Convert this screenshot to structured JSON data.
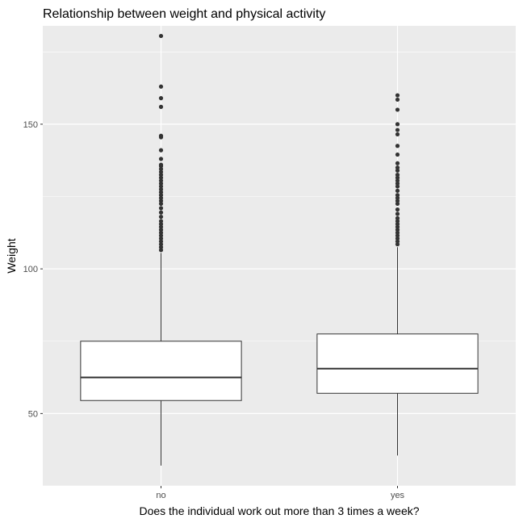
{
  "chart_data": {
    "type": "box",
    "title": "Relationship between weight and physical activity",
    "xlabel": "Does the individual work out more than 3 times a week?",
    "ylabel": "Weight",
    "ylim": [
      25,
      184
    ],
    "yticks": [
      50,
      100,
      150
    ],
    "grid": true,
    "legend": "none",
    "colors": {
      "panel": "#ebebeb",
      "grid": "#ffffff",
      "box_fill": "#ffffff",
      "box_stroke": "#333333",
      "outlier": "#333333",
      "tick_text": "#4d4d4d"
    },
    "categories": [
      "no",
      "yes"
    ],
    "boxes": [
      {
        "category": "no",
        "whisker_low": 32,
        "q1": 54.5,
        "median": 62.5,
        "q3": 75,
        "whisker_high": 105.5,
        "outliers": [
          106.5,
          107.5,
          108.5,
          109.5,
          110.5,
          111.5,
          112.5,
          113.5,
          114.5,
          115.5,
          116.5,
          118,
          119.5,
          121,
          122.5,
          123.5,
          124.5,
          125.5,
          126.5,
          127.5,
          128.5,
          129.5,
          130.5,
          131.5,
          132.5,
          133.5,
          134.5,
          135.5,
          136,
          138,
          141,
          145.5,
          146,
          156,
          159,
          163,
          180.5
        ]
      },
      {
        "category": "yes",
        "whisker_low": 35.5,
        "q1": 57,
        "median": 65.5,
        "q3": 77.5,
        "whisker_high": 107.5,
        "outliers": [
          108.5,
          109.5,
          110.5,
          111.5,
          112.5,
          113.5,
          114.5,
          115.5,
          116.5,
          117.5,
          119,
          120.5,
          122.5,
          123.5,
          124.5,
          125.5,
          127,
          128.5,
          129.5,
          130.5,
          131.5,
          132.5,
          134,
          135,
          136.5,
          139.5,
          142.5,
          146.5,
          148,
          150,
          155,
          158.5,
          160
        ]
      }
    ]
  }
}
